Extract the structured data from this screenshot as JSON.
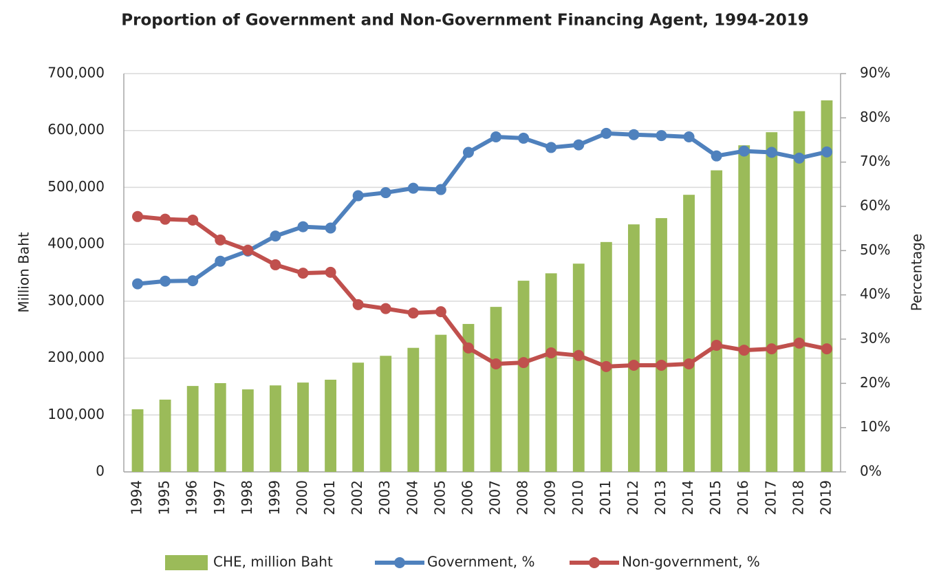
{
  "chart_data": {
    "type": "bar",
    "title": "Proportion of Government and Non-Government Financing Agent, 1994-2019",
    "y_label": "Million Baht",
    "y2_label": "Percentage",
    "categories": [
      "1994",
      "1995",
      "1996",
      "1997",
      "1998",
      "1999",
      "2000",
      "2001",
      "2002",
      "2003",
      "2004",
      "2005",
      "2006",
      "2007",
      "2008",
      "2009",
      "2010",
      "2011",
      "2012",
      "2013",
      "2014",
      "2015",
      "2016",
      "2017",
      "2018",
      "2019"
    ],
    "series": [
      {
        "name": "CHE, million Baht",
        "type": "bar",
        "color": "#9bbb59",
        "values": [
          110000,
          127000,
          151000,
          156000,
          145000,
          152000,
          157000,
          162000,
          192000,
          204000,
          218000,
          241000,
          260000,
          290000,
          336000,
          349000,
          366000,
          404000,
          435000,
          446000,
          487000,
          530000,
          574000,
          597000,
          634000,
          653000
        ]
      },
      {
        "name": "Government, %",
        "type": "line",
        "axis": "y2",
        "color": "#4f81bd",
        "values": [
          42.5,
          43.1,
          43.2,
          47.6,
          49.9,
          53.3,
          55.4,
          55.1,
          62.4,
          63.1,
          64.1,
          63.8,
          72.2,
          75.7,
          75.4,
          73.3,
          73.9,
          76.5,
          76.2,
          76.0,
          75.7,
          71.4,
          72.5,
          72.2,
          70.9,
          72.3
        ]
      },
      {
        "name": "Non-government, %",
        "type": "line",
        "axis": "y2",
        "color": "#c0504d",
        "values": [
          57.7,
          57.1,
          56.9,
          52.4,
          50.1,
          46.8,
          44.9,
          45.1,
          37.8,
          36.9,
          35.9,
          36.2,
          28.0,
          24.4,
          24.7,
          26.9,
          26.3,
          23.8,
          24.1,
          24.1,
          24.4,
          28.6,
          27.5,
          27.8,
          29.1,
          27.8
        ]
      }
    ],
    "ylim": [
      0,
      700000
    ],
    "yticks": [
      0,
      {
        "value": 100000,
        "label": "100,000"
      },
      {
        "value": 200000,
        "label": "200,000"
      },
      {
        "value": 300000,
        "label": "300,000"
      },
      {
        "value": 400000,
        "label": "400,000"
      },
      {
        "value": 500000,
        "label": "500,000"
      },
      {
        "value": 600000,
        "label": "600,000"
      },
      {
        "value": 700000,
        "label": "700,000"
      }
    ],
    "y2lim": [
      0,
      90
    ],
    "y2ticks": [
      {
        "value": 0,
        "label": "0%"
      },
      {
        "value": 10,
        "label": "10%"
      },
      {
        "value": 20,
        "label": "20%"
      },
      {
        "value": 30,
        "label": "30%"
      },
      {
        "value": 40,
        "label": "40%"
      },
      {
        "value": 50,
        "label": "50%"
      },
      {
        "value": 60,
        "label": "60%"
      },
      {
        "value": 70,
        "label": "70%"
      },
      {
        "value": 80,
        "label": "80%"
      },
      {
        "value": 90,
        "label": "90%"
      }
    ],
    "grid": true,
    "legend": "bottom"
  }
}
